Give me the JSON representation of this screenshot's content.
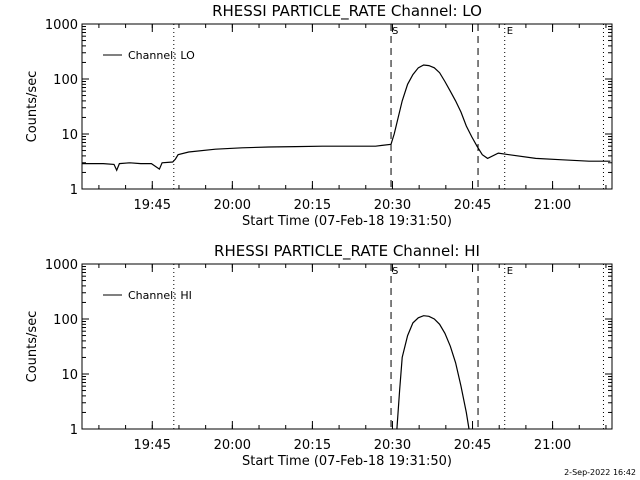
{
  "footer": {
    "date_stamp": "2-Sep-2022 16:42"
  },
  "chart_data": [
    {
      "type": "line",
      "title": "RHESSI PARTICLE_RATE Channel: LO",
      "xlabel": "Start Time (07-Feb-18 19:31:50)",
      "ylabel": "Counts/sec",
      "y_scale": "log",
      "ylim": [
        1,
        1000
      ],
      "xlim_minutes": [
        0,
        99.3
      ],
      "x_ticks": [
        "19:45",
        "20:00",
        "20:15",
        "20:30",
        "20:45",
        "21:00"
      ],
      "y_ticks": [
        "1",
        "10",
        "100",
        "1000"
      ],
      "legend": {
        "placement": "top-left",
        "entries": [
          "Channel: LO"
        ]
      },
      "event_markers": {
        "start": "S",
        "end": "E"
      },
      "dotted_lines_minutes": [
        17.2,
        79.2,
        97.7
      ],
      "dashed_lines_minutes": [
        57.9,
        74.2
      ],
      "series": [
        {
          "name": "Channel: LO",
          "x_minutes": [
            0,
            2,
            4,
            6,
            6.5,
            7,
            9,
            11,
            13,
            14.5,
            15,
            17,
            17.5,
            18,
            20,
            25,
            30,
            35,
            40,
            45,
            50,
            55,
            57.9,
            58.5,
            60,
            61,
            62,
            63,
            64,
            65,
            66,
            67,
            68,
            69,
            70,
            71,
            72,
            73,
            74,
            75,
            76,
            78,
            80,
            85,
            90,
            95,
            99
          ],
          "values": [
            2.9,
            2.9,
            2.9,
            2.8,
            2.2,
            2.9,
            3.0,
            2.9,
            2.9,
            2.3,
            3.0,
            3.1,
            3.5,
            4.2,
            4.7,
            5.3,
            5.6,
            5.8,
            5.9,
            6.0,
            6.0,
            6.0,
            6.5,
            10,
            40,
            80,
            120,
            160,
            180,
            175,
            160,
            130,
            90,
            60,
            40,
            25,
            14,
            9,
            6,
            4.2,
            3.6,
            4.5,
            4.2,
            3.6,
            3.4,
            3.2,
            3.2
          ]
        }
      ]
    },
    {
      "type": "line",
      "title": "RHESSI PARTICLE_RATE Channel: HI",
      "xlabel": "Start Time (07-Feb-18 19:31:50)",
      "ylabel": "Counts/sec",
      "y_scale": "log",
      "ylim": [
        1,
        1000
      ],
      "xlim_minutes": [
        0,
        99.3
      ],
      "x_ticks": [
        "19:45",
        "20:00",
        "20:15",
        "20:30",
        "20:45",
        "21:00"
      ],
      "y_ticks": [
        "1",
        "10",
        "100",
        "1000"
      ],
      "legend": {
        "placement": "top-left",
        "entries": [
          "Channel: HI"
        ]
      },
      "event_markers": {
        "start": "S",
        "end": "E"
      },
      "dotted_lines_minutes": [
        17.2,
        79.2,
        97.7
      ],
      "dashed_lines_minutes": [
        57.9,
        74.2
      ],
      "series": [
        {
          "name": "Channel: HI",
          "x_minutes": [
            59.0,
            59.5,
            60,
            61,
            62,
            63,
            64,
            65,
            66,
            67,
            68,
            69,
            70,
            71,
            72,
            72.5
          ],
          "values": [
            1,
            5,
            20,
            50,
            85,
            105,
            115,
            112,
            100,
            80,
            55,
            32,
            16,
            6,
            2,
            1
          ]
        }
      ]
    }
  ]
}
